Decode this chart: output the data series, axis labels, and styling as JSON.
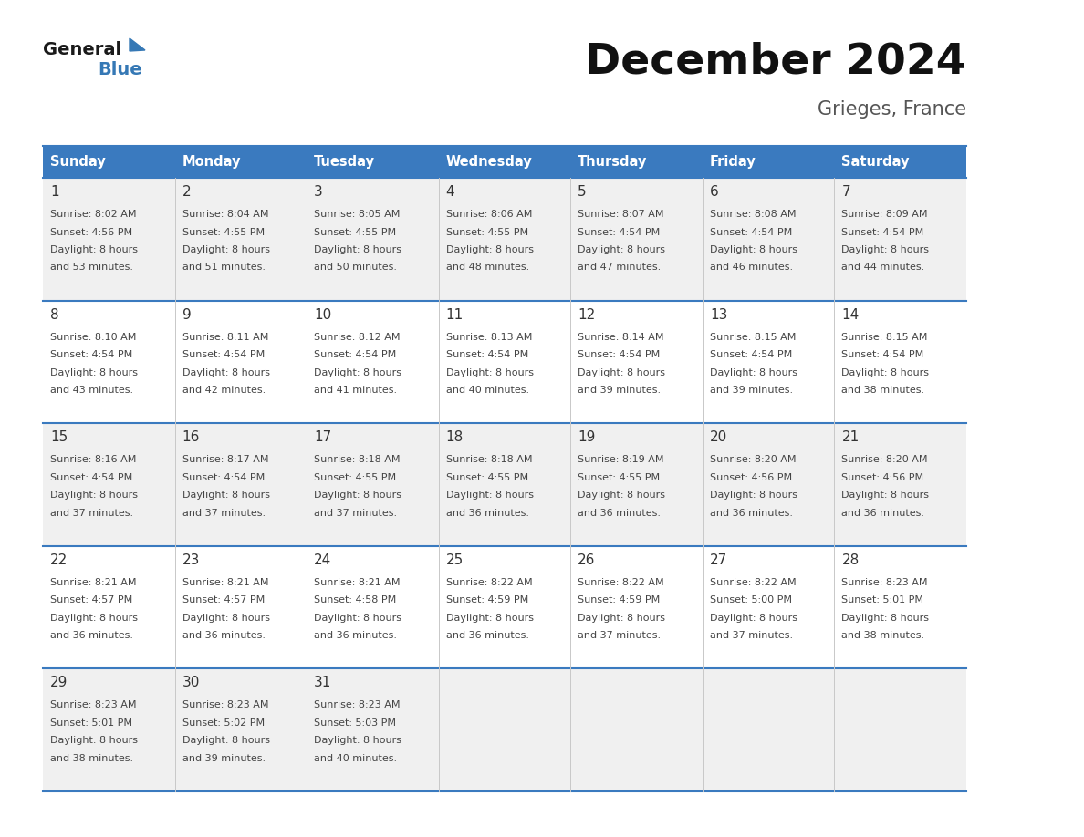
{
  "title": "December 2024",
  "subtitle": "Grieges, France",
  "header_bg": "#3a7abf",
  "header_text": "#ffffff",
  "header_days": [
    "Sunday",
    "Monday",
    "Tuesday",
    "Wednesday",
    "Thursday",
    "Friday",
    "Saturday"
  ],
  "row_bg_odd": "#f0f0f0",
  "row_bg_even": "#ffffff",
  "cell_border": "#3a7abf",
  "day_number_color": "#333333",
  "content_color": "#444444",
  "background": "#ffffff",
  "title_color": "#111111",
  "subtitle_color": "#555555",
  "logo_general_color": "#1a1a1a",
  "logo_blue_color": "#3578b5",
  "days": [
    {
      "date": 1,
      "col": 0,
      "row": 0,
      "sunrise": "8:02 AM",
      "sunset": "4:56 PM",
      "daylight_min": "53"
    },
    {
      "date": 2,
      "col": 1,
      "row": 0,
      "sunrise": "8:04 AM",
      "sunset": "4:55 PM",
      "daylight_min": "51"
    },
    {
      "date": 3,
      "col": 2,
      "row": 0,
      "sunrise": "8:05 AM",
      "sunset": "4:55 PM",
      "daylight_min": "50"
    },
    {
      "date": 4,
      "col": 3,
      "row": 0,
      "sunrise": "8:06 AM",
      "sunset": "4:55 PM",
      "daylight_min": "48"
    },
    {
      "date": 5,
      "col": 4,
      "row": 0,
      "sunrise": "8:07 AM",
      "sunset": "4:54 PM",
      "daylight_min": "47"
    },
    {
      "date": 6,
      "col": 5,
      "row": 0,
      "sunrise": "8:08 AM",
      "sunset": "4:54 PM",
      "daylight_min": "46"
    },
    {
      "date": 7,
      "col": 6,
      "row": 0,
      "sunrise": "8:09 AM",
      "sunset": "4:54 PM",
      "daylight_min": "44"
    },
    {
      "date": 8,
      "col": 0,
      "row": 1,
      "sunrise": "8:10 AM",
      "sunset": "4:54 PM",
      "daylight_min": "43"
    },
    {
      "date": 9,
      "col": 1,
      "row": 1,
      "sunrise": "8:11 AM",
      "sunset": "4:54 PM",
      "daylight_min": "42"
    },
    {
      "date": 10,
      "col": 2,
      "row": 1,
      "sunrise": "8:12 AM",
      "sunset": "4:54 PM",
      "daylight_min": "41"
    },
    {
      "date": 11,
      "col": 3,
      "row": 1,
      "sunrise": "8:13 AM",
      "sunset": "4:54 PM",
      "daylight_min": "40"
    },
    {
      "date": 12,
      "col": 4,
      "row": 1,
      "sunrise": "8:14 AM",
      "sunset": "4:54 PM",
      "daylight_min": "39"
    },
    {
      "date": 13,
      "col": 5,
      "row": 1,
      "sunrise": "8:15 AM",
      "sunset": "4:54 PM",
      "daylight_min": "39"
    },
    {
      "date": 14,
      "col": 6,
      "row": 1,
      "sunrise": "8:15 AM",
      "sunset": "4:54 PM",
      "daylight_min": "38"
    },
    {
      "date": 15,
      "col": 0,
      "row": 2,
      "sunrise": "8:16 AM",
      "sunset": "4:54 PM",
      "daylight_min": "37"
    },
    {
      "date": 16,
      "col": 1,
      "row": 2,
      "sunrise": "8:17 AM",
      "sunset": "4:54 PM",
      "daylight_min": "37"
    },
    {
      "date": 17,
      "col": 2,
      "row": 2,
      "sunrise": "8:18 AM",
      "sunset": "4:55 PM",
      "daylight_min": "37"
    },
    {
      "date": 18,
      "col": 3,
      "row": 2,
      "sunrise": "8:18 AM",
      "sunset": "4:55 PM",
      "daylight_min": "36"
    },
    {
      "date": 19,
      "col": 4,
      "row": 2,
      "sunrise": "8:19 AM",
      "sunset": "4:55 PM",
      "daylight_min": "36"
    },
    {
      "date": 20,
      "col": 5,
      "row": 2,
      "sunrise": "8:20 AM",
      "sunset": "4:56 PM",
      "daylight_min": "36"
    },
    {
      "date": 21,
      "col": 6,
      "row": 2,
      "sunrise": "8:20 AM",
      "sunset": "4:56 PM",
      "daylight_min": "36"
    },
    {
      "date": 22,
      "col": 0,
      "row": 3,
      "sunrise": "8:21 AM",
      "sunset": "4:57 PM",
      "daylight_min": "36"
    },
    {
      "date": 23,
      "col": 1,
      "row": 3,
      "sunrise": "8:21 AM",
      "sunset": "4:57 PM",
      "daylight_min": "36"
    },
    {
      "date": 24,
      "col": 2,
      "row": 3,
      "sunrise": "8:21 AM",
      "sunset": "4:58 PM",
      "daylight_min": "36"
    },
    {
      "date": 25,
      "col": 3,
      "row": 3,
      "sunrise": "8:22 AM",
      "sunset": "4:59 PM",
      "daylight_min": "36"
    },
    {
      "date": 26,
      "col": 4,
      "row": 3,
      "sunrise": "8:22 AM",
      "sunset": "4:59 PM",
      "daylight_min": "37"
    },
    {
      "date": 27,
      "col": 5,
      "row": 3,
      "sunrise": "8:22 AM",
      "sunset": "5:00 PM",
      "daylight_min": "37"
    },
    {
      "date": 28,
      "col": 6,
      "row": 3,
      "sunrise": "8:23 AM",
      "sunset": "5:01 PM",
      "daylight_min": "38"
    },
    {
      "date": 29,
      "col": 0,
      "row": 4,
      "sunrise": "8:23 AM",
      "sunset": "5:01 PM",
      "daylight_min": "38"
    },
    {
      "date": 30,
      "col": 1,
      "row": 4,
      "sunrise": "8:23 AM",
      "sunset": "5:02 PM",
      "daylight_min": "39"
    },
    {
      "date": 31,
      "col": 2,
      "row": 4,
      "sunrise": "8:23 AM",
      "sunset": "5:03 PM",
      "daylight_min": "40"
    }
  ]
}
